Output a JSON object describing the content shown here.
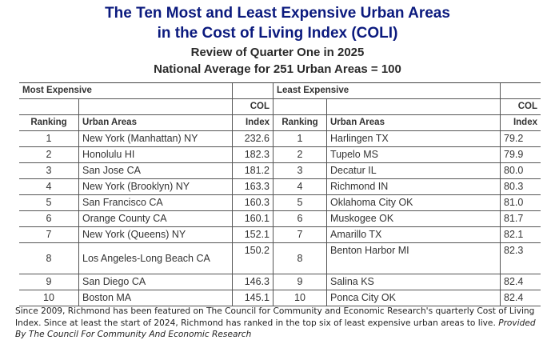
{
  "header": {
    "title_line1": "The Ten Most and Least Expensive Urban Areas",
    "title_line2": "in the Cost of Living Index (COLI)",
    "subtitle": "Review of Quarter One in 2025",
    "note": "National Average for 251 Urban Areas = 100"
  },
  "table": {
    "most_label": "Most Expensive",
    "least_label": "Least Expensive",
    "col_header_top": "COL",
    "col_ranking": "Ranking",
    "col_urban_areas": "Urban Areas",
    "col_index": "Index",
    "most": [
      {
        "rank": "1",
        "area": "New York (Manhattan) NY",
        "index": "232.6"
      },
      {
        "rank": "2",
        "area": "Honolulu HI",
        "index": "182.3"
      },
      {
        "rank": "3",
        "area": "San Jose CA",
        "index": "181.2"
      },
      {
        "rank": "4",
        "area": "New York (Brooklyn) NY",
        "index": "163.3"
      },
      {
        "rank": "5",
        "area": "San Francisco CA",
        "index": "160.3"
      },
      {
        "rank": "6",
        "area": "Orange County CA",
        "index": "160.1"
      },
      {
        "rank": "7",
        "area": "New York (Queens) NY",
        "index": "152.1"
      },
      {
        "rank": "8",
        "area": "Los Angeles-Long Beach CA",
        "index": "150.2"
      },
      {
        "rank": "9",
        "area": "San Diego CA",
        "index": "146.3"
      },
      {
        "rank": "10",
        "area": "Boston MA",
        "index": "145.1"
      }
    ],
    "least": [
      {
        "rank": "1",
        "area": "Harlingen TX",
        "index": "79.2"
      },
      {
        "rank": "2",
        "area": "Tupelo MS",
        "index": "79.9"
      },
      {
        "rank": "3",
        "area": "Decatur IL",
        "index": "80.0"
      },
      {
        "rank": "4",
        "area": "Richmond IN",
        "index": "80.3"
      },
      {
        "rank": "5",
        "area": "Oklahoma City OK",
        "index": "81.0"
      },
      {
        "rank": "6",
        "area": "Muskogee OK",
        "index": "81.7"
      },
      {
        "rank": "7",
        "area": "Amarillo TX",
        "index": "82.1"
      },
      {
        "rank": "8",
        "area": "Benton Harbor MI",
        "index": "82.3"
      },
      {
        "rank": "9",
        "area": "Salina KS",
        "index": "82.4"
      },
      {
        "rank": "10",
        "area": "Ponca City OK",
        "index": "82.4"
      }
    ]
  },
  "caption": {
    "text": "Since 2009, Richmond has been featured on The Council for Community and Economic Research's quarterly Cost of Living Index. Since at least the start of 2024, Richmond has ranked in the top six of least expensive urban areas to live. ",
    "credit": "Provided By The Council For Community And Economic Research"
  }
}
